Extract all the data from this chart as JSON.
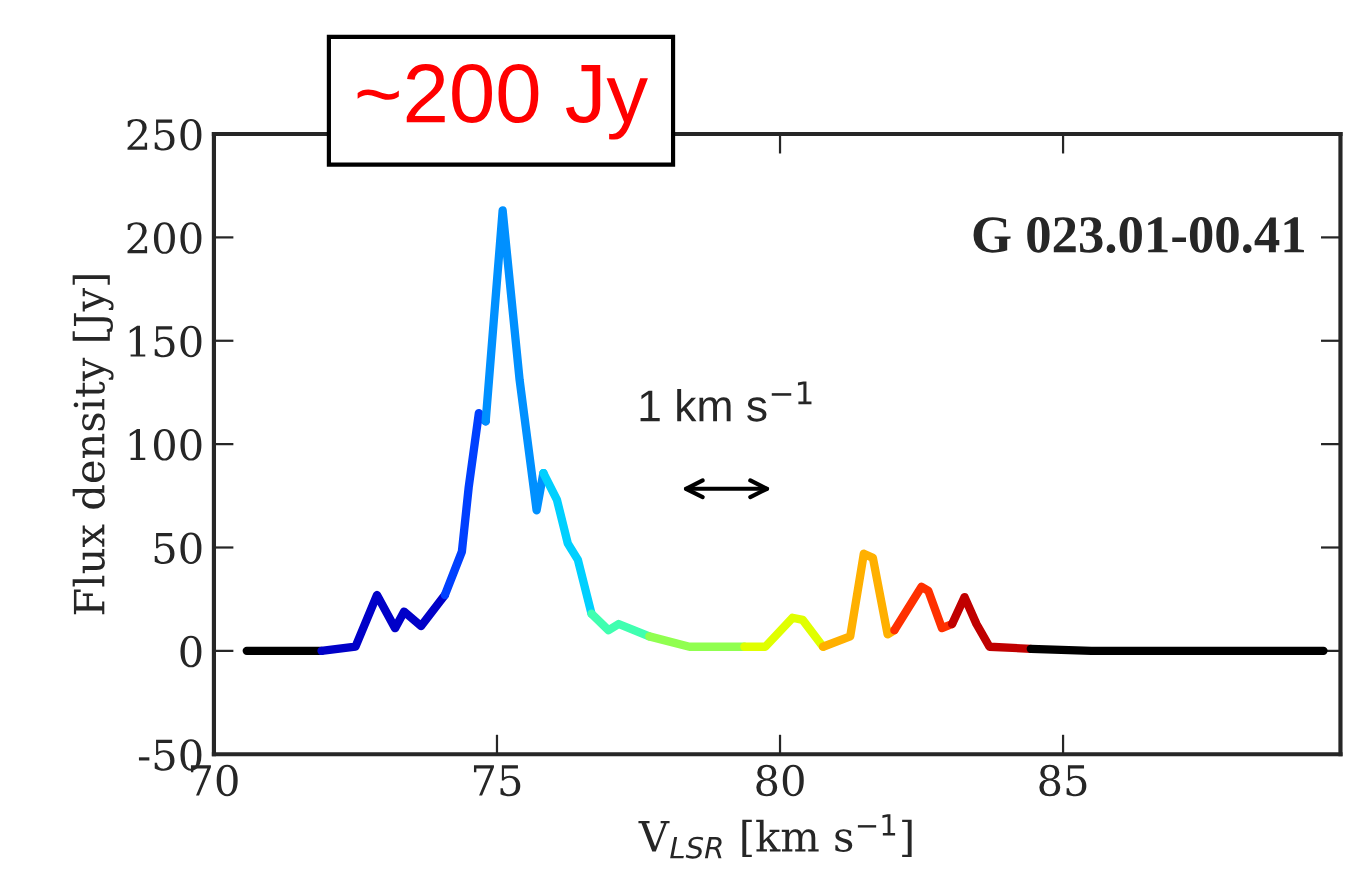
{
  "chart_data": {
    "type": "line",
    "xlabel": "V$_{LSR}$ [km s$^{−1}$]",
    "ylabel": "Flux density [Jy]",
    "xlim": [
      70,
      89.9
    ],
    "xticks": [
      70,
      75,
      80,
      85
    ],
    "ylim": [
      -50,
      250
    ],
    "yticks": [
      -50,
      0,
      50,
      100,
      150,
      200,
      250
    ],
    "grid": false,
    "marker": "none",
    "line_style": "solid",
    "annotations": [
      "~200 Jy",
      "G 023.01-00.41",
      "1 km s$^{−1}$"
    ],
    "series": [
      {
        "color": "#000000",
        "x": [
          70.58,
          71.0,
          71.4,
          71.9
        ],
        "values": [
          0,
          0,
          0,
          0
        ]
      },
      {
        "color": "#0000c8",
        "x": [
          71.9,
          72.5,
          72.88,
          73.2,
          73.36,
          73.66,
          74.08
        ],
        "values": [
          0,
          2,
          27,
          11,
          19,
          12,
          27
        ]
      },
      {
        "color": "#0040ff",
        "x": [
          74.08,
          74.38,
          74.5,
          74.68,
          74.8
        ],
        "values": [
          27,
          48,
          79,
          115,
          111
        ]
      },
      {
        "color": "#0090ff",
        "x": [
          74.8,
          75.1,
          75.4,
          75.7,
          75.82
        ],
        "values": [
          111,
          213,
          131,
          68,
          86
        ]
      },
      {
        "color": "#00d0ff",
        "x": [
          75.82,
          76.06,
          76.25,
          76.43,
          76.67
        ],
        "values": [
          86,
          73,
          52,
          44,
          18
        ]
      },
      {
        "color": "#40ffb0",
        "x": [
          76.67,
          76.97,
          77.15,
          77.69
        ],
        "values": [
          18,
          10,
          13,
          7
        ]
      },
      {
        "color": "#90ff50",
        "x": [
          77.69,
          78.4,
          79.37
        ],
        "values": [
          7,
          2,
          2
        ]
      },
      {
        "color": "#e0ff00",
        "x": [
          79.37,
          79.74,
          80.22,
          80.4,
          80.76
        ],
        "values": [
          2,
          2,
          16,
          15,
          2
        ]
      },
      {
        "color": "#ffb000",
        "x": [
          80.76,
          81.24,
          81.48,
          81.64,
          81.9,
          82.02
        ],
        "values": [
          2,
          7,
          47,
          45,
          8,
          10
        ]
      },
      {
        "color": "#ff3000",
        "x": [
          82.02,
          82.5,
          82.62,
          82.86,
          83.04
        ],
        "values": [
          10,
          31,
          29,
          11,
          13
        ]
      },
      {
        "color": "#c00000",
        "x": [
          83.04,
          83.26,
          83.47,
          83.7,
          84.43
        ],
        "values": [
          13,
          26,
          13,
          2,
          1
        ]
      },
      {
        "color": "#000000",
        "x": [
          84.43,
          85.5,
          86.5,
          87.5,
          88.5,
          89.6
        ],
        "values": [
          1,
          0,
          0,
          0,
          0,
          0
        ]
      }
    ]
  }
}
